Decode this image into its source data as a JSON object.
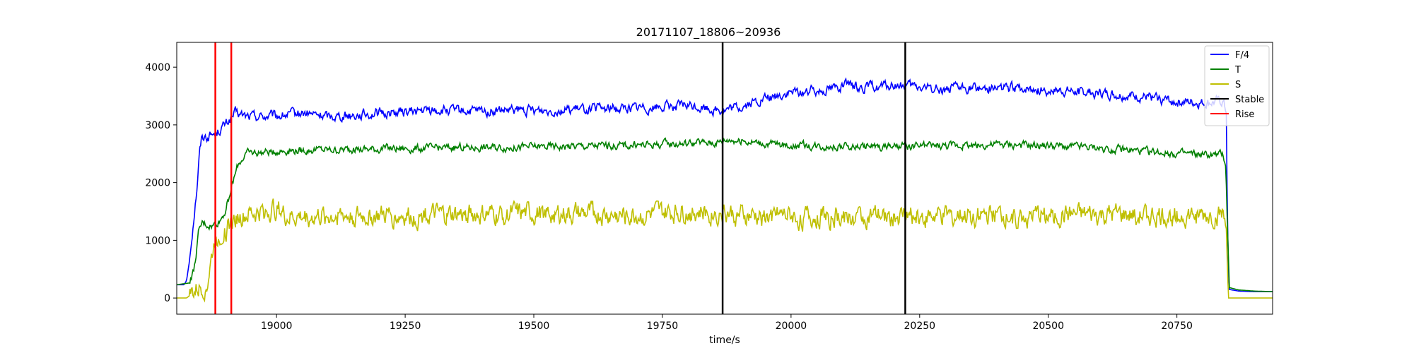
{
  "chart_data": {
    "type": "line",
    "title": "20171107_18806~20936",
    "xlabel": "time/s",
    "ylabel": "",
    "xlim": [
      18806,
      20936
    ],
    "ylim": [
      -280,
      4430
    ],
    "xticks": [
      19000,
      19250,
      19500,
      19750,
      20000,
      20250,
      20500,
      20750
    ],
    "yticks": [
      0,
      1000,
      2000,
      3000,
      4000
    ],
    "grid": false,
    "legend_position": "top-right",
    "series": [
      {
        "name": "F/4",
        "color": "#0000ff",
        "noise": 70,
        "points": [
          [
            18806,
            230
          ],
          [
            18820,
            230
          ],
          [
            18825,
            300
          ],
          [
            18830,
            600
          ],
          [
            18838,
            1300
          ],
          [
            18845,
            1900
          ],
          [
            18850,
            2500
          ],
          [
            18855,
            2800
          ],
          [
            18865,
            2800
          ],
          [
            18880,
            2850
          ],
          [
            18900,
            3000
          ],
          [
            18920,
            3200
          ],
          [
            18940,
            3150
          ],
          [
            19000,
            3150
          ],
          [
            19050,
            3200
          ],
          [
            19100,
            3150
          ],
          [
            19200,
            3200
          ],
          [
            19300,
            3250
          ],
          [
            19400,
            3230
          ],
          [
            19500,
            3250
          ],
          [
            19600,
            3270
          ],
          [
            19700,
            3300
          ],
          [
            19800,
            3330
          ],
          [
            19870,
            3250
          ],
          [
            19900,
            3300
          ],
          [
            19950,
            3450
          ],
          [
            20000,
            3550
          ],
          [
            20050,
            3600
          ],
          [
            20100,
            3680
          ],
          [
            20150,
            3650
          ],
          [
            20200,
            3680
          ],
          [
            20250,
            3650
          ],
          [
            20300,
            3620
          ],
          [
            20400,
            3650
          ],
          [
            20500,
            3600
          ],
          [
            20600,
            3550
          ],
          [
            20700,
            3470
          ],
          [
            20750,
            3400
          ],
          [
            20800,
            3380
          ],
          [
            20840,
            3400
          ],
          [
            20846,
            3200
          ],
          [
            20848,
            1500
          ],
          [
            20851,
            150
          ],
          [
            20870,
            120
          ],
          [
            20900,
            110
          ],
          [
            20936,
            110
          ]
        ]
      },
      {
        "name": "T",
        "color": "#008000",
        "noise": 55,
        "points": [
          [
            18806,
            230
          ],
          [
            18830,
            260
          ],
          [
            18840,
            500
          ],
          [
            18848,
            1100
          ],
          [
            18855,
            1300
          ],
          [
            18875,
            1250
          ],
          [
            18890,
            1350
          ],
          [
            18900,
            1500
          ],
          [
            18915,
            2000
          ],
          [
            18925,
            2300
          ],
          [
            18940,
            2500
          ],
          [
            19000,
            2550
          ],
          [
            19100,
            2570
          ],
          [
            19300,
            2600
          ],
          [
            19500,
            2620
          ],
          [
            19700,
            2650
          ],
          [
            19860,
            2700
          ],
          [
            19880,
            2750
          ],
          [
            19950,
            2680
          ],
          [
            20000,
            2650
          ],
          [
            20100,
            2620
          ],
          [
            20200,
            2620
          ],
          [
            20300,
            2640
          ],
          [
            20400,
            2660
          ],
          [
            20500,
            2640
          ],
          [
            20600,
            2600
          ],
          [
            20700,
            2530
          ],
          [
            20800,
            2480
          ],
          [
            20840,
            2480
          ],
          [
            20845,
            2300
          ],
          [
            20848,
            1300
          ],
          [
            20852,
            180
          ],
          [
            20870,
            140
          ],
          [
            20900,
            120
          ],
          [
            20936,
            110
          ]
        ]
      },
      {
        "name": "S",
        "color": "#bfbf00",
        "noise": 150,
        "points": [
          [
            18806,
            0
          ],
          [
            18825,
            0
          ],
          [
            18840,
            100
          ],
          [
            18855,
            200
          ],
          [
            18865,
            250
          ],
          [
            18880,
            1000
          ],
          [
            18890,
            1100
          ],
          [
            18900,
            1150
          ],
          [
            18920,
            1400
          ],
          [
            18950,
            1450
          ],
          [
            19000,
            1550
          ],
          [
            19020,
            1400
          ],
          [
            19100,
            1420
          ],
          [
            19300,
            1430
          ],
          [
            19500,
            1440
          ],
          [
            19700,
            1450
          ],
          [
            19870,
            1500
          ],
          [
            19900,
            1420
          ],
          [
            20000,
            1400
          ],
          [
            20200,
            1420
          ],
          [
            20400,
            1420
          ],
          [
            20600,
            1420
          ],
          [
            20840,
            1420
          ],
          [
            20846,
            1200
          ],
          [
            20850,
            0
          ],
          [
            20936,
            0
          ]
        ]
      }
    ],
    "vlines": [
      {
        "name": "Stable",
        "color": "#000000",
        "x": [
          19867,
          20222
        ]
      },
      {
        "name": "Rise",
        "color": "#ff0000",
        "x": [
          18881,
          18912
        ]
      }
    ]
  }
}
